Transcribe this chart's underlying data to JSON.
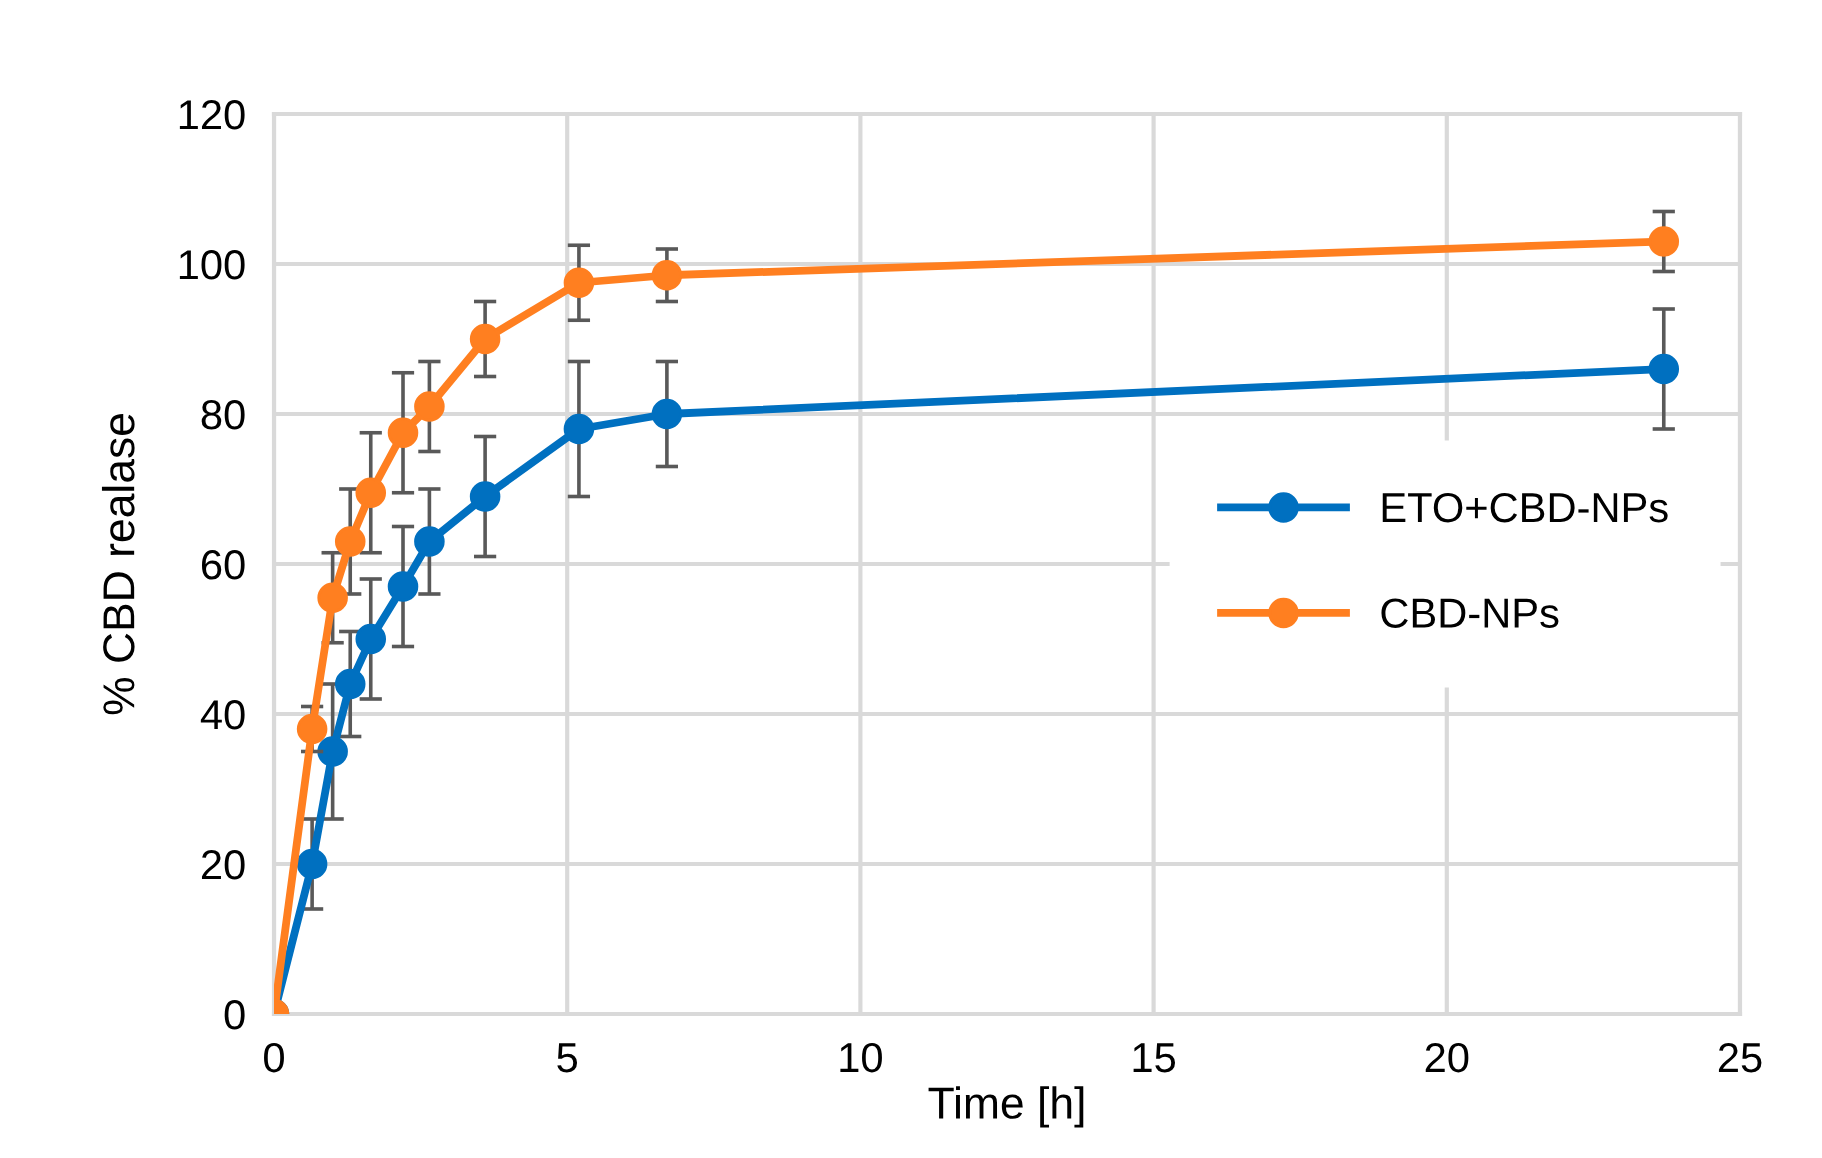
{
  "chart_data": {
    "type": "line",
    "xlabel": "Time [h]",
    "ylabel": "% CBD realase",
    "xlim": [
      0,
      25
    ],
    "xticks": [
      0,
      5,
      10,
      15,
      20,
      25
    ],
    "ylim": [
      0,
      120
    ],
    "yticks": [
      0,
      20,
      40,
      60,
      80,
      100,
      120
    ],
    "grid": true,
    "legend": "right",
    "marker": "circle",
    "line_style": "solid",
    "series": [
      {
        "name": "ETO+CBD-NPs",
        "color": "#0070c0",
        "x": [
          0,
          0.65,
          1.0,
          1.3,
          1.65,
          2.2,
          2.65,
          3.6,
          5.2,
          6.7,
          23.7
        ],
        "values": [
          0,
          20,
          35,
          44,
          50,
          57,
          63,
          69,
          78,
          80,
          86
        ],
        "errors": [
          null,
          6,
          9,
          7,
          8,
          8,
          7,
          8,
          9,
          7,
          8
        ]
      },
      {
        "name": "CBD-NPs",
        "color": "#ff7f20",
        "x": [
          0,
          0.65,
          1.0,
          1.3,
          1.65,
          2.2,
          2.65,
          3.6,
          5.2,
          6.7,
          23.7
        ],
        "values": [
          0,
          38,
          55.5,
          63,
          69.5,
          77.5,
          81,
          90,
          97.5,
          98.5,
          103
        ],
        "errors": [
          null,
          3,
          6,
          7,
          8,
          8,
          6,
          5,
          5,
          3.5,
          4
        ]
      }
    ]
  }
}
